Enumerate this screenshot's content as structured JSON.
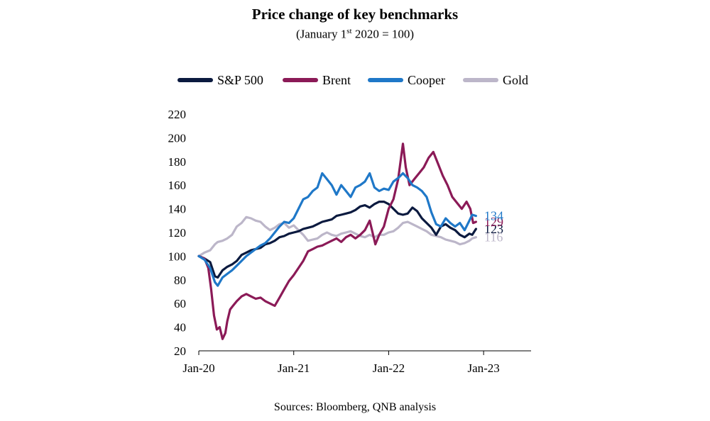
{
  "chart_data": {
    "type": "line",
    "title": "Price change of key benchmarks",
    "subtitle": {
      "prefix": "(January 1",
      "sup": "st",
      "suffix": " 2020 = 100)"
    },
    "source": "Sources: Bloomberg, QNB analysis",
    "ylim": [
      20,
      220
    ],
    "yticks": [
      "20",
      "40",
      "60",
      "80",
      "100",
      "120",
      "140",
      "160",
      "180",
      "200",
      "220"
    ],
    "xticks": [
      {
        "label": "Jan-20",
        "t": 0
      },
      {
        "label": "Jan-21",
        "t": 1
      },
      {
        "label": "Jan-22",
        "t": 2
      },
      {
        "label": "Jan-23",
        "t": 3
      }
    ],
    "x_extent": [
      0,
      3.5
    ],
    "grid": false,
    "legend_position": "top",
    "series": [
      {
        "name": "S&P 500",
        "color": "#0b1a3f",
        "end_label": "123",
        "end_value": 123,
        "points": [
          [
            0,
            100
          ],
          [
            0.06,
            98
          ],
          [
            0.12,
            95
          ],
          [
            0.17,
            83
          ],
          [
            0.2,
            82
          ],
          [
            0.25,
            88
          ],
          [
            0.3,
            91
          ],
          [
            0.35,
            93
          ],
          [
            0.4,
            96
          ],
          [
            0.45,
            101
          ],
          [
            0.5,
            103
          ],
          [
            0.55,
            105
          ],
          [
            0.6,
            106
          ],
          [
            0.65,
            107
          ],
          [
            0.7,
            110
          ],
          [
            0.75,
            111
          ],
          [
            0.8,
            113
          ],
          [
            0.85,
            116
          ],
          [
            0.9,
            117
          ],
          [
            0.95,
            119
          ],
          [
            1.0,
            120
          ],
          [
            1.05,
            121
          ],
          [
            1.1,
            123
          ],
          [
            1.15,
            124
          ],
          [
            1.2,
            125
          ],
          [
            1.25,
            127
          ],
          [
            1.3,
            129
          ],
          [
            1.35,
            130
          ],
          [
            1.4,
            131
          ],
          [
            1.45,
            134
          ],
          [
            1.5,
            135
          ],
          [
            1.55,
            136
          ],
          [
            1.6,
            137
          ],
          [
            1.65,
            139
          ],
          [
            1.7,
            142
          ],
          [
            1.75,
            143
          ],
          [
            1.8,
            141
          ],
          [
            1.85,
            144
          ],
          [
            1.9,
            146
          ],
          [
            1.95,
            146
          ],
          [
            2.0,
            144
          ],
          [
            2.05,
            140
          ],
          [
            2.1,
            136
          ],
          [
            2.15,
            135
          ],
          [
            2.2,
            136
          ],
          [
            2.25,
            141
          ],
          [
            2.3,
            138
          ],
          [
            2.35,
            132
          ],
          [
            2.4,
            128
          ],
          [
            2.45,
            124
          ],
          [
            2.5,
            118
          ],
          [
            2.55,
            125
          ],
          [
            2.6,
            127
          ],
          [
            2.65,
            124
          ],
          [
            2.7,
            122
          ],
          [
            2.75,
            118
          ],
          [
            2.8,
            116
          ],
          [
            2.85,
            119
          ],
          [
            2.88,
            118
          ],
          [
            2.92,
            123
          ]
        ]
      },
      {
        "name": "Brent",
        "color": "#8b1a57",
        "end_label": "129",
        "end_value": 129,
        "points": [
          [
            0,
            100
          ],
          [
            0.06,
            98
          ],
          [
            0.1,
            90
          ],
          [
            0.13,
            72
          ],
          [
            0.16,
            50
          ],
          [
            0.19,
            38
          ],
          [
            0.22,
            40
          ],
          [
            0.25,
            30
          ],
          [
            0.28,
            35
          ],
          [
            0.3,
            45
          ],
          [
            0.33,
            55
          ],
          [
            0.36,
            58
          ],
          [
            0.4,
            62
          ],
          [
            0.45,
            66
          ],
          [
            0.5,
            68
          ],
          [
            0.55,
            66
          ],
          [
            0.6,
            64
          ],
          [
            0.65,
            65
          ],
          [
            0.7,
            62
          ],
          [
            0.75,
            60
          ],
          [
            0.8,
            58
          ],
          [
            0.85,
            65
          ],
          [
            0.9,
            72
          ],
          [
            0.95,
            79
          ],
          [
            1.0,
            84
          ],
          [
            1.05,
            90
          ],
          [
            1.1,
            96
          ],
          [
            1.15,
            104
          ],
          [
            1.2,
            106
          ],
          [
            1.25,
            108
          ],
          [
            1.3,
            109
          ],
          [
            1.35,
            111
          ],
          [
            1.4,
            113
          ],
          [
            1.45,
            115
          ],
          [
            1.5,
            112
          ],
          [
            1.55,
            116
          ],
          [
            1.6,
            118
          ],
          [
            1.65,
            115
          ],
          [
            1.7,
            118
          ],
          [
            1.75,
            122
          ],
          [
            1.8,
            130
          ],
          [
            1.83,
            120
          ],
          [
            1.86,
            110
          ],
          [
            1.9,
            118
          ],
          [
            1.95,
            125
          ],
          [
            2.0,
            140
          ],
          [
            2.05,
            148
          ],
          [
            2.1,
            165
          ],
          [
            2.15,
            195
          ],
          [
            2.18,
            175
          ],
          [
            2.22,
            160
          ],
          [
            2.27,
            165
          ],
          [
            2.32,
            170
          ],
          [
            2.37,
            175
          ],
          [
            2.42,
            183
          ],
          [
            2.47,
            188
          ],
          [
            2.52,
            178
          ],
          [
            2.57,
            168
          ],
          [
            2.62,
            160
          ],
          [
            2.67,
            150
          ],
          [
            2.72,
            145
          ],
          [
            2.77,
            140
          ],
          [
            2.82,
            146
          ],
          [
            2.86,
            140
          ],
          [
            2.89,
            128
          ],
          [
            2.92,
            129
          ]
        ]
      },
      {
        "name": "Cooper",
        "color": "#1f78c8",
        "end_label": "134",
        "end_value": 134,
        "points": [
          [
            0,
            100
          ],
          [
            0.06,
            97
          ],
          [
            0.12,
            90
          ],
          [
            0.17,
            78
          ],
          [
            0.2,
            75
          ],
          [
            0.25,
            82
          ],
          [
            0.3,
            85
          ],
          [
            0.35,
            88
          ],
          [
            0.4,
            92
          ],
          [
            0.45,
            96
          ],
          [
            0.5,
            100
          ],
          [
            0.55,
            103
          ],
          [
            0.6,
            106
          ],
          [
            0.65,
            109
          ],
          [
            0.7,
            111
          ],
          [
            0.75,
            115
          ],
          [
            0.8,
            120
          ],
          [
            0.85,
            125
          ],
          [
            0.9,
            129
          ],
          [
            0.95,
            128
          ],
          [
            1.0,
            132
          ],
          [
            1.05,
            140
          ],
          [
            1.1,
            148
          ],
          [
            1.15,
            150
          ],
          [
            1.2,
            155
          ],
          [
            1.25,
            158
          ],
          [
            1.3,
            170
          ],
          [
            1.35,
            165
          ],
          [
            1.4,
            160
          ],
          [
            1.45,
            152
          ],
          [
            1.5,
            160
          ],
          [
            1.55,
            155
          ],
          [
            1.6,
            150
          ],
          [
            1.65,
            158
          ],
          [
            1.7,
            160
          ],
          [
            1.75,
            163
          ],
          [
            1.8,
            170
          ],
          [
            1.85,
            158
          ],
          [
            1.9,
            155
          ],
          [
            1.95,
            157
          ],
          [
            2.0,
            156
          ],
          [
            2.05,
            163
          ],
          [
            2.1,
            166
          ],
          [
            2.15,
            170
          ],
          [
            2.2,
            166
          ],
          [
            2.25,
            160
          ],
          [
            2.3,
            158
          ],
          [
            2.35,
            155
          ],
          [
            2.4,
            150
          ],
          [
            2.45,
            137
          ],
          [
            2.5,
            127
          ],
          [
            2.55,
            125
          ],
          [
            2.6,
            132
          ],
          [
            2.65,
            128
          ],
          [
            2.7,
            125
          ],
          [
            2.75,
            128
          ],
          [
            2.8,
            122
          ],
          [
            2.85,
            130
          ],
          [
            2.88,
            135
          ],
          [
            2.92,
            134
          ]
        ]
      },
      {
        "name": "Gold",
        "color": "#bcb6c9",
        "end_label": "116",
        "end_value": 116,
        "points": [
          [
            0,
            100
          ],
          [
            0.06,
            103
          ],
          [
            0.12,
            105
          ],
          [
            0.17,
            110
          ],
          [
            0.2,
            112
          ],
          [
            0.25,
            113
          ],
          [
            0.3,
            115
          ],
          [
            0.35,
            118
          ],
          [
            0.4,
            125
          ],
          [
            0.45,
            128
          ],
          [
            0.5,
            133
          ],
          [
            0.55,
            132
          ],
          [
            0.6,
            130
          ],
          [
            0.65,
            129
          ],
          [
            0.7,
            125
          ],
          [
            0.75,
            122
          ],
          [
            0.8,
            124
          ],
          [
            0.85,
            127
          ],
          [
            0.9,
            128
          ],
          [
            0.95,
            124
          ],
          [
            1.0,
            126
          ],
          [
            1.05,
            122
          ],
          [
            1.1,
            118
          ],
          [
            1.15,
            113
          ],
          [
            1.2,
            114
          ],
          [
            1.25,
            115
          ],
          [
            1.3,
            118
          ],
          [
            1.35,
            120
          ],
          [
            1.4,
            118
          ],
          [
            1.45,
            117
          ],
          [
            1.5,
            119
          ],
          [
            1.55,
            120
          ],
          [
            1.6,
            121
          ],
          [
            1.65,
            119
          ],
          [
            1.7,
            117
          ],
          [
            1.75,
            116
          ],
          [
            1.8,
            118
          ],
          [
            1.85,
            116
          ],
          [
            1.9,
            118
          ],
          [
            1.95,
            118
          ],
          [
            2.0,
            120
          ],
          [
            2.05,
            121
          ],
          [
            2.1,
            124
          ],
          [
            2.15,
            128
          ],
          [
            2.2,
            129
          ],
          [
            2.25,
            127
          ],
          [
            2.3,
            125
          ],
          [
            2.35,
            123
          ],
          [
            2.4,
            121
          ],
          [
            2.45,
            118
          ],
          [
            2.5,
            117
          ],
          [
            2.55,
            116
          ],
          [
            2.6,
            114
          ],
          [
            2.65,
            113
          ],
          [
            2.7,
            112
          ],
          [
            2.75,
            110
          ],
          [
            2.8,
            111
          ],
          [
            2.85,
            113
          ],
          [
            2.88,
            115
          ],
          [
            2.92,
            116
          ]
        ]
      }
    ]
  }
}
